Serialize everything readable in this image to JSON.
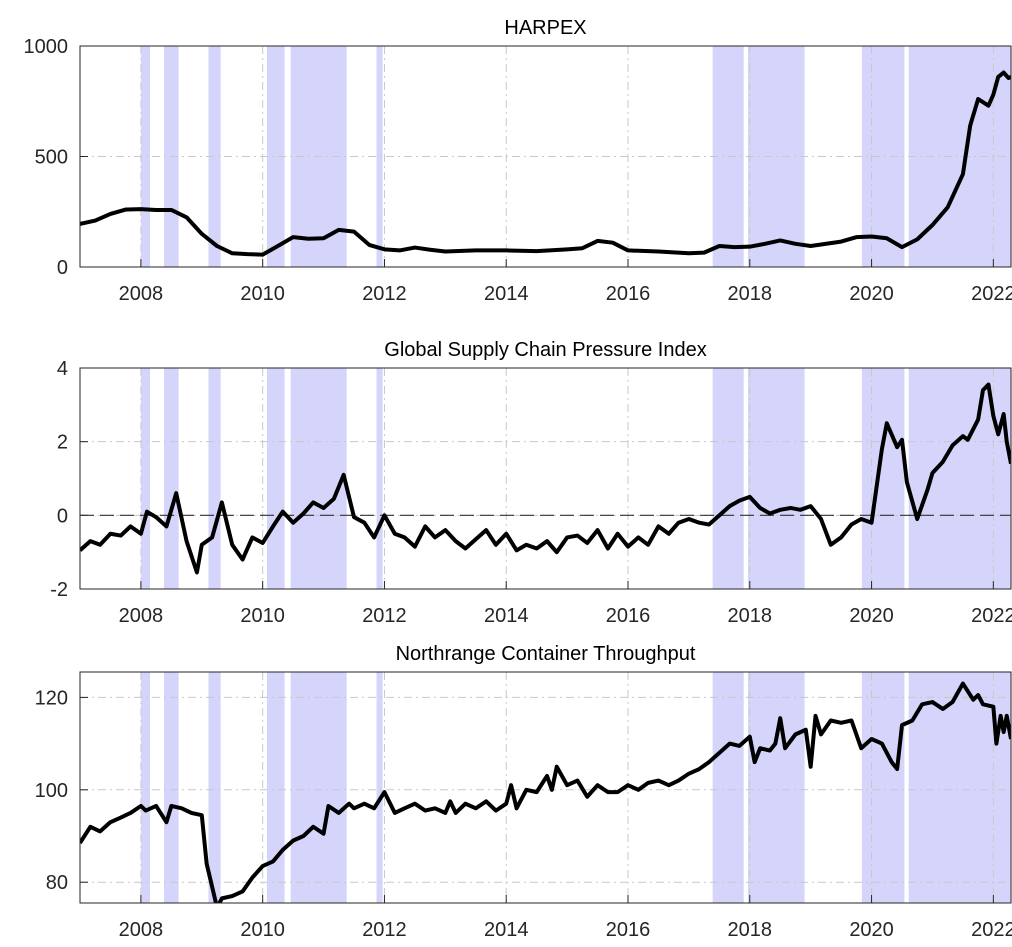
{
  "chart_data": [
    {
      "type": "line",
      "title": "HARPEX",
      "color": "#000000",
      "shade_color": "#d5d5fb",
      "grid": true,
      "xlim": [
        2007,
        2022.29
      ],
      "xticks": [
        2008,
        2010,
        2012,
        2014,
        2016,
        2018,
        2020,
        2022
      ],
      "ylim": [
        0,
        1000
      ],
      "yticks": [
        0,
        500,
        1000
      ],
      "shaded": [
        [
          2008.0,
          2008.15
        ],
        [
          2008.38,
          2008.62
        ],
        [
          2009.11,
          2009.31
        ],
        [
          2010.07,
          2010.36
        ],
        [
          2010.46,
          2011.38
        ],
        [
          2011.87,
          2011.97
        ],
        [
          2017.39,
          2017.9
        ],
        [
          2017.97,
          2018.9
        ],
        [
          2019.84,
          2020.54
        ],
        [
          2020.61,
          2022.29
        ]
      ],
      "x": [
        2007.0,
        2007.25,
        2007.5,
        2007.75,
        2008.0,
        2008.25,
        2008.5,
        2008.75,
        2009.0,
        2009.25,
        2009.5,
        2009.75,
        2010.0,
        2010.25,
        2010.5,
        2010.75,
        2011.0,
        2011.25,
        2011.5,
        2011.75,
        2012.0,
        2012.25,
        2012.5,
        2012.75,
        2013.0,
        2013.5,
        2014.0,
        2014.5,
        2015.0,
        2015.25,
        2015.5,
        2015.75,
        2016.0,
        2016.5,
        2017.0,
        2017.25,
        2017.5,
        2017.75,
        2018.0,
        2018.25,
        2018.5,
        2018.75,
        2019.0,
        2019.5,
        2019.75,
        2020.0,
        2020.25,
        2020.5,
        2020.75,
        2021.0,
        2021.25,
        2021.5,
        2021.62,
        2021.75,
        2021.92,
        2022.0,
        2022.08,
        2022.17,
        2022.25,
        2022.29
      ],
      "values": [
        195,
        210,
        240,
        260,
        262,
        258,
        258,
        225,
        150,
        95,
        62,
        58,
        56,
        95,
        135,
        128,
        130,
        168,
        160,
        100,
        80,
        75,
        88,
        78,
        70,
        75,
        75,
        72,
        80,
        85,
        118,
        110,
        75,
        70,
        62,
        65,
        95,
        90,
        92,
        105,
        120,
        105,
        95,
        115,
        135,
        138,
        130,
        90,
        125,
        190,
        270,
        420,
        640,
        760,
        730,
        780,
        860,
        880,
        855,
        860
      ]
    },
    {
      "type": "line",
      "title": "Global Supply Chain Pressure Index",
      "color": "#000000",
      "shade_color": "#d5d5fb",
      "grid": true,
      "reference_line": 0,
      "xlim": [
        2007,
        2022.29
      ],
      "xticks": [
        2008,
        2010,
        2012,
        2014,
        2016,
        2018,
        2020,
        2022
      ],
      "ylim": [
        -2,
        4
      ],
      "yticks": [
        -2,
        0,
        2,
        4
      ],
      "shaded": [
        [
          2008.0,
          2008.15
        ],
        [
          2008.38,
          2008.62
        ],
        [
          2009.11,
          2009.31
        ],
        [
          2010.07,
          2010.36
        ],
        [
          2010.46,
          2011.38
        ],
        [
          2011.87,
          2011.97
        ],
        [
          2017.39,
          2017.9
        ],
        [
          2017.97,
          2018.9
        ],
        [
          2019.84,
          2020.54
        ],
        [
          2020.61,
          2022.29
        ]
      ],
      "x": [
        2007.0,
        2007.17,
        2007.33,
        2007.5,
        2007.67,
        2007.83,
        2008.0,
        2008.1,
        2008.25,
        2008.42,
        2008.58,
        2008.75,
        2008.92,
        2009.0,
        2009.17,
        2009.33,
        2009.5,
        2009.67,
        2009.83,
        2010.0,
        2010.17,
        2010.33,
        2010.5,
        2010.67,
        2010.83,
        2011.0,
        2011.17,
        2011.33,
        2011.5,
        2011.67,
        2011.83,
        2012.0,
        2012.17,
        2012.33,
        2012.5,
        2012.67,
        2012.83,
        2013.0,
        2013.17,
        2013.33,
        2013.5,
        2013.67,
        2013.83,
        2014.0,
        2014.17,
        2014.33,
        2014.5,
        2014.67,
        2014.83,
        2015.0,
        2015.17,
        2015.33,
        2015.5,
        2015.67,
        2015.83,
        2016.0,
        2016.17,
        2016.33,
        2016.5,
        2016.67,
        2016.83,
        2017.0,
        2017.17,
        2017.33,
        2017.5,
        2017.67,
        2017.83,
        2018.0,
        2018.17,
        2018.33,
        2018.5,
        2018.67,
        2018.83,
        2019.0,
        2019.17,
        2019.33,
        2019.5,
        2019.67,
        2019.83,
        2020.0,
        2020.17,
        2020.25,
        2020.42,
        2020.5,
        2020.58,
        2020.75,
        2020.92,
        2021.0,
        2021.17,
        2021.33,
        2021.5,
        2021.58,
        2021.75,
        2021.83,
        2021.92,
        2022.0,
        2022.08,
        2022.17,
        2022.22,
        2022.29
      ],
      "values": [
        -0.95,
        -0.7,
        -0.8,
        -0.5,
        -0.55,
        -0.3,
        -0.5,
        0.1,
        -0.05,
        -0.3,
        0.6,
        -0.7,
        -1.55,
        -0.8,
        -0.6,
        0.35,
        -0.8,
        -1.2,
        -0.6,
        -0.75,
        -0.3,
        0.1,
        -0.2,
        0.05,
        0.35,
        0.2,
        0.45,
        1.1,
        -0.05,
        -0.2,
        -0.6,
        0.0,
        -0.5,
        -0.6,
        -0.85,
        -0.3,
        -0.6,
        -0.4,
        -0.7,
        -0.9,
        -0.65,
        -0.4,
        -0.8,
        -0.5,
        -0.95,
        -0.8,
        -0.9,
        -0.7,
        -1.0,
        -0.6,
        -0.55,
        -0.75,
        -0.4,
        -0.9,
        -0.5,
        -0.85,
        -0.6,
        -0.8,
        -0.3,
        -0.5,
        -0.2,
        -0.1,
        -0.2,
        -0.25,
        0.0,
        0.25,
        0.4,
        0.5,
        0.2,
        0.05,
        0.15,
        0.2,
        0.15,
        0.25,
        -0.1,
        -0.8,
        -0.6,
        -0.25,
        -0.1,
        -0.2,
        1.8,
        2.5,
        1.85,
        2.05,
        0.9,
        -0.1,
        0.7,
        1.15,
        1.45,
        1.9,
        2.15,
        2.05,
        2.6,
        3.4,
        3.55,
        2.7,
        2.2,
        2.75,
        2.0,
        1.4
      ]
    },
    {
      "type": "line",
      "title": "Northrange Container Throughput",
      "color": "#000000",
      "shade_color": "#d5d5fb",
      "grid": true,
      "xlim": [
        2007,
        2022.29
      ],
      "xticks": [
        2008,
        2010,
        2012,
        2014,
        2016,
        2018,
        2020,
        2022
      ],
      "ylim": [
        75.5,
        125.5
      ],
      "yticks": [
        80,
        100,
        120
      ],
      "shaded": [
        [
          2008.0,
          2008.15
        ],
        [
          2008.38,
          2008.62
        ],
        [
          2009.11,
          2009.31
        ],
        [
          2010.07,
          2010.36
        ],
        [
          2010.46,
          2011.38
        ],
        [
          2011.87,
          2011.97
        ],
        [
          2017.39,
          2017.9
        ],
        [
          2017.97,
          2018.9
        ],
        [
          2019.84,
          2020.54
        ],
        [
          2020.61,
          2022.29
        ]
      ],
      "x": [
        2007.0,
        2007.17,
        2007.33,
        2007.5,
        2007.67,
        2007.83,
        2008.0,
        2008.08,
        2008.25,
        2008.42,
        2008.5,
        2008.67,
        2008.83,
        2009.0,
        2009.08,
        2009.17,
        2009.25,
        2009.33,
        2009.5,
        2009.67,
        2009.83,
        2010.0,
        2010.17,
        2010.33,
        2010.5,
        2010.67,
        2010.83,
        2011.0,
        2011.08,
        2011.25,
        2011.42,
        2011.5,
        2011.67,
        2011.83,
        2012.0,
        2012.17,
        2012.33,
        2012.5,
        2012.67,
        2012.83,
        2013.0,
        2013.08,
        2013.17,
        2013.33,
        2013.5,
        2013.67,
        2013.83,
        2014.0,
        2014.08,
        2014.17,
        2014.33,
        2014.5,
        2014.67,
        2014.75,
        2014.83,
        2015.0,
        2015.17,
        2015.33,
        2015.5,
        2015.67,
        2015.83,
        2016.0,
        2016.17,
        2016.33,
        2016.5,
        2016.67,
        2016.83,
        2017.0,
        2017.17,
        2017.33,
        2017.5,
        2017.67,
        2017.83,
        2018.0,
        2018.08,
        2018.17,
        2018.33,
        2018.42,
        2018.5,
        2018.58,
        2018.75,
        2018.92,
        2019.0,
        2019.08,
        2019.17,
        2019.33,
        2019.5,
        2019.67,
        2019.83,
        2020.0,
        2020.17,
        2020.33,
        2020.42,
        2020.5,
        2020.67,
        2020.83,
        2021.0,
        2021.17,
        2021.33,
        2021.5,
        2021.67,
        2021.75,
        2021.83,
        2022.0,
        2022.05,
        2022.12,
        2022.17,
        2022.22,
        2022.29
      ],
      "values": [
        88.5,
        92,
        91,
        93,
        94,
        95,
        96.5,
        95.5,
        96.5,
        93,
        96.5,
        96,
        95,
        94.5,
        84,
        79,
        74.5,
        76.5,
        77,
        78,
        81,
        83.5,
        84.5,
        87,
        89,
        90,
        92,
        90.5,
        96.5,
        95,
        97,
        96,
        97,
        96,
        99.5,
        95,
        96,
        97,
        95.5,
        96,
        95,
        97.5,
        95,
        97,
        96,
        97.5,
        95.5,
        97,
        101,
        96,
        100,
        99.5,
        103,
        100,
        105,
        101,
        102,
        98.5,
        101,
        99.5,
        99.5,
        101,
        100,
        101.5,
        102,
        101,
        102,
        103.5,
        104.5,
        106,
        108,
        110,
        109.5,
        111.5,
        106,
        109,
        108.5,
        110,
        115.5,
        109,
        112,
        113,
        105,
        116,
        112,
        115,
        114.5,
        115,
        109,
        111,
        110,
        106,
        104.5,
        114,
        115,
        118.5,
        119,
        117.5,
        119,
        123,
        119.5,
        120.5,
        118.5,
        118,
        110,
        116,
        112.5,
        116,
        111
      ]
    }
  ]
}
